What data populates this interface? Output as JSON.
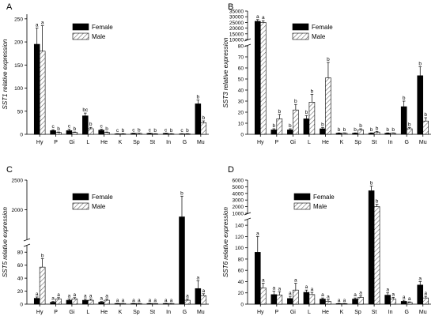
{
  "figure": {
    "female_label": "Female",
    "male_label": "Male",
    "colors": {
      "female": "#000000",
      "male": "#ffffff",
      "hatch": "#555555"
    }
  },
  "chart_data": [
    {
      "panel": "A",
      "type": "bar",
      "ylabel": "SST1 relative expression",
      "categories": [
        "Hy",
        "P",
        "Gi",
        "L",
        "He",
        "K",
        "Sp",
        "St",
        "In",
        "G",
        "Mu"
      ],
      "series": [
        {
          "name": "Female",
          "values": [
            195,
            8,
            8,
            40,
            9,
            1,
            2,
            2,
            2,
            1,
            66
          ],
          "errors": [
            35,
            2,
            3,
            6,
            2,
            0.5,
            0.5,
            0.5,
            0.5,
            0.5,
            8
          ],
          "letters": [
            "a",
            "c",
            "c",
            "bc",
            "c",
            "c",
            "c",
            "c",
            "c",
            "c",
            "b"
          ]
        },
        {
          "name": "Male",
          "values": [
            180,
            4,
            4,
            12,
            4,
            1,
            2,
            1,
            1,
            1,
            25
          ],
          "errors": [
            55,
            1,
            1,
            3,
            1,
            0.5,
            0.5,
            0.5,
            0.5,
            0.5,
            4
          ],
          "letters": [
            "a",
            "b",
            "b",
            "b",
            "b",
            "b",
            "b",
            "b",
            "b",
            "b",
            "b"
          ]
        }
      ],
      "yticks": [
        0,
        50,
        100,
        150,
        200,
        250
      ],
      "ylim": [
        0,
        260
      ]
    },
    {
      "panel": "B",
      "type": "bar",
      "ylabel": "SST3 relative expression",
      "categories": [
        "Hy",
        "P",
        "Gi",
        "L",
        "He",
        "K",
        "Sp",
        "St",
        "In",
        "G",
        "Mu"
      ],
      "series": [
        {
          "name": "Female",
          "values": [
            26000,
            4,
            4,
            14,
            5,
            1,
            1,
            1,
            1,
            25,
            53
          ],
          "errors": [
            1500,
            1,
            1,
            3,
            1,
            0.3,
            0.3,
            0.3,
            0.3,
            5,
            8
          ],
          "letters": [
            "a",
            "b",
            "b",
            "b",
            "b",
            "b",
            "b",
            "b",
            "b",
            "b",
            "b"
          ]
        },
        {
          "name": "Male",
          "values": [
            25000,
            14,
            22,
            29,
            51,
            1,
            4,
            2,
            1,
            5,
            12
          ],
          "errors": [
            1500,
            4,
            5,
            7,
            14,
            0.3,
            1,
            0.5,
            0.3,
            1,
            3
          ],
          "letters": [
            "a",
            "b",
            "b",
            "b",
            "b",
            "b",
            "b",
            "b",
            "b",
            "b",
            "b"
          ]
        }
      ],
      "yticks_lower": [
        0,
        10,
        20,
        30,
        40,
        50,
        60,
        70,
        80
      ],
      "yticks_upper": [
        10000,
        15000,
        20000,
        25000,
        30000,
        35000
      ],
      "ylim_lower": [
        0,
        80
      ],
      "ylim_upper": [
        10000,
        35000
      ]
    },
    {
      "panel": "C",
      "type": "bar",
      "ylabel": "SST5 relative expression",
      "categories": [
        "Hy",
        "P",
        "Gi",
        "L",
        "He",
        "K",
        "Sp",
        "St",
        "In",
        "G",
        "Mu"
      ],
      "series": [
        {
          "name": "Female",
          "values": [
            9,
            3,
            6,
            6,
            3,
            1,
            1,
            1,
            1,
            1880,
            24
          ],
          "errors": [
            2,
            1,
            2,
            2,
            1,
            0.3,
            0.3,
            0.3,
            0.3,
            350,
            12
          ],
          "letters": [
            "a",
            "a",
            "a",
            "a",
            "a",
            "a",
            "a",
            "a",
            "a",
            "b",
            "a"
          ]
        },
        {
          "name": "Male",
          "values": [
            57,
            8,
            8,
            6,
            6,
            1,
            1,
            1,
            1,
            6,
            13
          ],
          "errors": [
            13,
            2,
            2,
            2,
            2,
            0.3,
            0.3,
            0.3,
            0.3,
            2,
            3
          ],
          "letters": [
            "b",
            "a",
            "a",
            "a",
            "a",
            "a",
            "a",
            "a",
            "a",
            "a",
            "a"
          ]
        }
      ],
      "yticks_lower": [
        0,
        20,
        40,
        60,
        80
      ],
      "yticks_upper": [
        2000,
        2500
      ],
      "ylim_lower": [
        0,
        90
      ],
      "ylim_upper": [
        1500,
        2500
      ]
    },
    {
      "panel": "D",
      "type": "bar",
      "ylabel": "SST6 relative expression",
      "categories": [
        "Hy",
        "P",
        "Gi",
        "L",
        "He",
        "K",
        "Sp",
        "St",
        "In",
        "G",
        "Mu"
      ],
      "series": [
        {
          "name": "Female",
          "values": [
            92,
            17,
            10,
            21,
            9,
            1,
            9,
            4400,
            16,
            5,
            34
          ],
          "errors": [
            28,
            6,
            4,
            4,
            2,
            0.5,
            2,
            700,
            4,
            2,
            6
          ],
          "letters": [
            "a",
            "a",
            "a",
            "a",
            "a",
            "a",
            "a",
            "b",
            "a",
            "a",
            "a"
          ]
        },
        {
          "name": "Male",
          "values": [
            29,
            16,
            25,
            17,
            5,
            1,
            12,
            2000,
            9,
            3,
            11
          ],
          "errors": [
            8,
            6,
            12,
            4,
            3,
            0.5,
            3,
            350,
            3,
            1,
            3
          ],
          "letters": [
            "a",
            "a",
            "a",
            "a",
            "a",
            "a",
            "a",
            "b",
            "a",
            "a",
            "a"
          ]
        }
      ],
      "yticks_lower": [
        0,
        20,
        40,
        60,
        80,
        100,
        120,
        140
      ],
      "yticks_upper": [
        1000,
        2000,
        3000,
        4000,
        5000,
        6000
      ],
      "ylim_lower": [
        0,
        150
      ],
      "ylim_upper": [
        1000,
        6000
      ]
    }
  ]
}
